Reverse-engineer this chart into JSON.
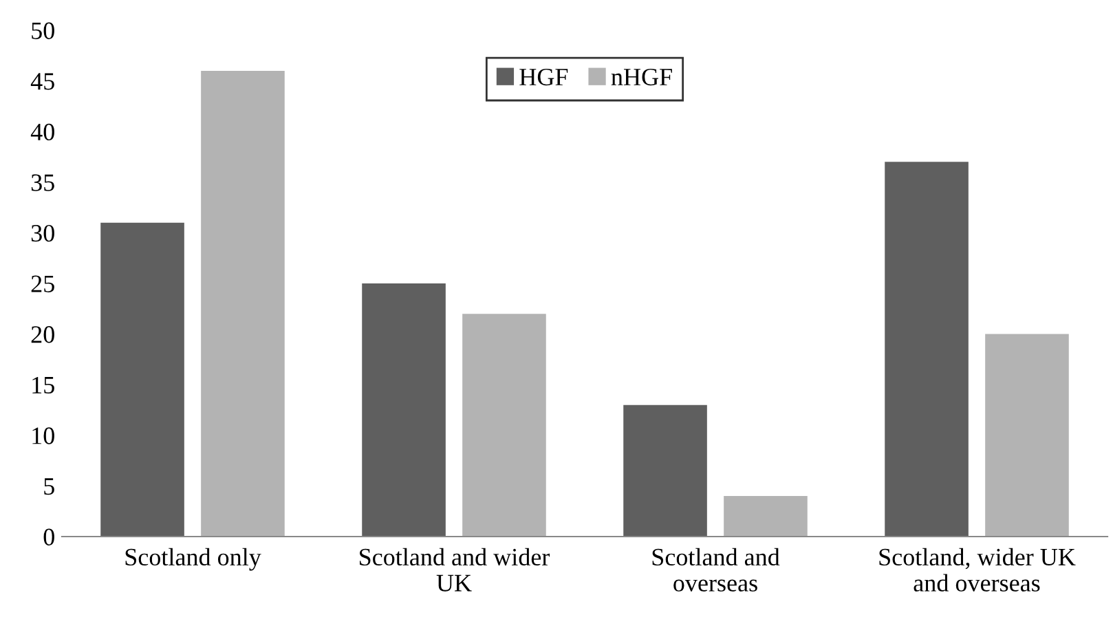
{
  "chart_data": {
    "type": "bar",
    "categories": [
      "Scotland only",
      "Scotland and wider\nUK",
      "Scotland and\noverseas",
      "Scotland, wider UK\nand overseas"
    ],
    "series": [
      {
        "name": "HGF",
        "color": "#5f5f5f",
        "values": [
          31,
          25,
          13,
          37
        ]
      },
      {
        "name": "nHGF",
        "color": "#b3b3b3",
        "values": [
          46,
          22,
          4,
          20
        ]
      }
    ],
    "ylim": [
      0,
      50
    ],
    "yticks": [
      0,
      5,
      10,
      15,
      20,
      25,
      30,
      35,
      40,
      45,
      50
    ],
    "grid": false,
    "legend": "top"
  }
}
